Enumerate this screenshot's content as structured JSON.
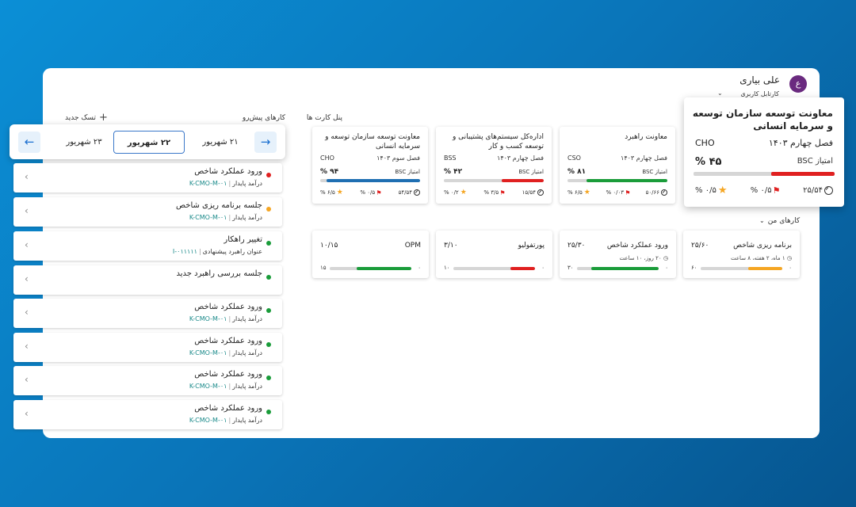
{
  "header": {
    "user_name": "علی بیاری",
    "user_role": "کارتابل کاربری",
    "avatar_letter": "ع"
  },
  "left": {
    "title": "کارهای پیش‌رو",
    "new_task_label": "تسک جدید",
    "dates": [
      "۲۱ شهریور",
      "۲۲ شهریور",
      "۲۳ شهریور"
    ],
    "active_date_index": 1,
    "tasks": [
      {
        "title": "ورود عملکرد شاخص",
        "code": "K-CMO-M-۰۱",
        "sub": "درآمد پایدار",
        "status_color": "#e02020"
      },
      {
        "title": "جلسه برنامه ریزی شاخص",
        "code": "K-CMO-M-۰۱",
        "sub": "درآمد پایدار",
        "status_color": "#f5a623"
      },
      {
        "title": "تغییر راهکار",
        "code": "I-۰۱۱۱۱۱",
        "sub": "عنوان راهبرد پیشنهادی",
        "status_color": "#1a9c3a"
      },
      {
        "title": "جلسه بررسی راهبرد جدید",
        "code": "",
        "sub": "",
        "status_color": "#1a9c3a"
      },
      {
        "title": "ورود عملکرد شاخص",
        "code": "K-CMO-M-۰۱",
        "sub": "درآمد پایدار",
        "status_color": "#1a9c3a"
      },
      {
        "title": "ورود عملکرد شاخص",
        "code": "K-CMO-M-۰۱",
        "sub": "درآمد پایدار",
        "status_color": "#1a9c3a"
      },
      {
        "title": "ورود عملکرد شاخص",
        "code": "K-CMO-M-۰۱",
        "sub": "درآمد پایدار",
        "status_color": "#1a9c3a"
      },
      {
        "title": "ورود عملکرد شاخص",
        "code": "K-CMO-M-۰۱",
        "sub": "درآمد پایدار",
        "status_color": "#1a9c3a"
      }
    ]
  },
  "cards_panel": {
    "title": "پنل کارت ها",
    "big_card": {
      "title": "معاونت توسعه سازمان توسعه و سرمایه انسانی",
      "season": "فصل چهارم ۱۴۰۳",
      "code": "CHO",
      "bsc_label": "امتیاز BSC",
      "pct": "۴۵ %",
      "progress": 0.45,
      "fill_color": "#e02020",
      "gauge": "۲۵/۵۴",
      "flag": "۰/۵ %",
      "star": "۰/۵ %"
    },
    "cards": [
      {
        "title": "معاونت راهبرد",
        "season": "فصل چهارم ۱۴۰۳",
        "code": "CSO",
        "bsc_label": "امتیاز BSC",
        "pct": "۸۱ %",
        "progress": 0.81,
        "fill_color": "#1a9c3a",
        "gauge": "۵۰/۶۶",
        "flag": "۰/۰۳ %",
        "star": "۶/۵ %"
      },
      {
        "title": "اداره‌کل سیستم‌های پشتیبانی و توسعه کسب و کار",
        "season": "فصل چهارم ۱۴۰۳",
        "code": "BSS",
        "bsc_label": "امتیاز BSC",
        "pct": "۴۲ %",
        "progress": 0.42,
        "fill_color": "#e02020",
        "gauge": "۱۵/۵۴",
        "flag": "۳/۵ %",
        "star": "۰/۲ %"
      },
      {
        "title": "معاونت توسعه سازمان توسعه و سرمایه انسانی",
        "season": "فصل سوم ۱۴۰۳",
        "code": "CHO",
        "bsc_label": "امتیاز BSC",
        "pct": "۹۴ %",
        "progress": 0.94,
        "fill_color": "#1f6fb2",
        "gauge": "۵۴/۵۴",
        "flag": "۰/۵ %",
        "star": "۶/۵ %"
      }
    ]
  },
  "my_tasks": {
    "title": "کارهای من",
    "cards": [
      {
        "title": "برنامه ریزی شاخص",
        "ratio": "۲۵/۶۰",
        "note": "۱ ماه، ۲ هفته، ۸ ساعت",
        "min": "۶۰",
        "max": "۰",
        "progress": 0.42,
        "fill_color": "#f5a623"
      },
      {
        "title": "ورود عملکرد شاخص",
        "ratio": "۲۵/۳۰",
        "note": "۲۰ روز، ۱۰ ساعت",
        "min": "۳۰",
        "max": "۰",
        "progress": 0.83,
        "fill_color": "#1a9c3a"
      },
      {
        "title": "پورتفولیو",
        "ratio": "۳/۱۰",
        "note": "",
        "min": "۱۰",
        "max": "۰",
        "progress": 0.3,
        "fill_color": "#e02020"
      },
      {
        "title": "OPM",
        "ratio": "۱۰/۱۵",
        "note": "",
        "min": "۱۵",
        "max": "۰",
        "progress": 0.67,
        "fill_color": "#1a9c3a"
      }
    ]
  }
}
